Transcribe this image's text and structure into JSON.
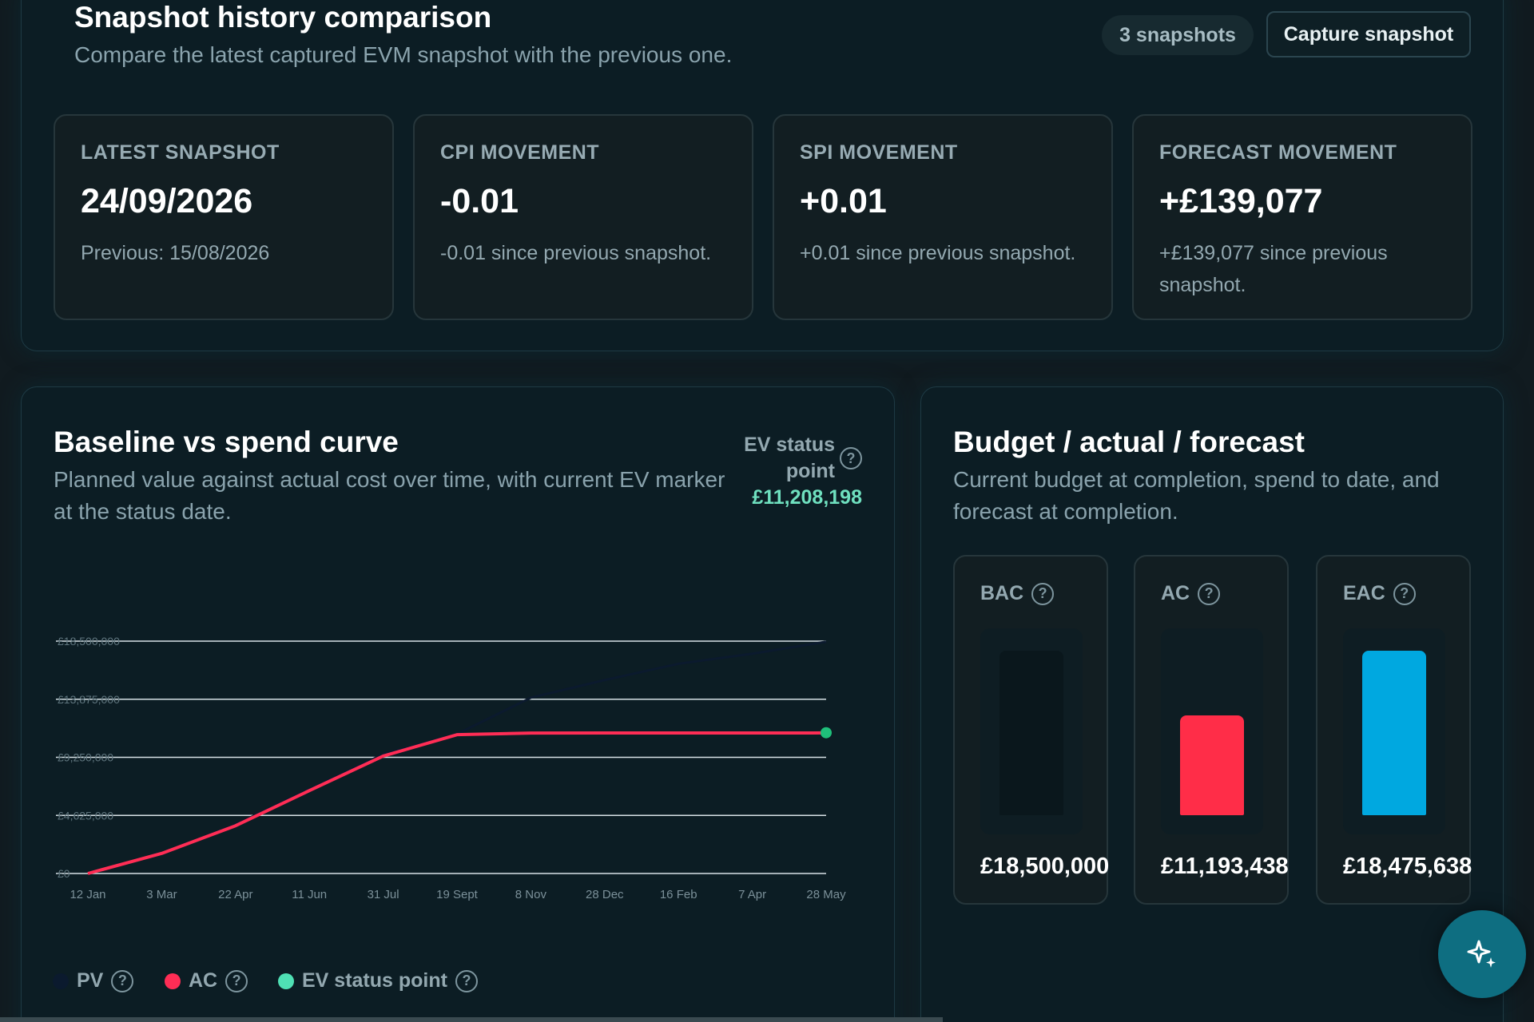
{
  "snapshot": {
    "title": "Snapshot history comparison",
    "subtitle": "Compare the latest captured EVM snapshot with the previous one.",
    "count_label": "3 snapshots",
    "capture_label": "Capture snapshot",
    "cards": [
      {
        "label": "LATEST SNAPSHOT",
        "value": "24/09/2026",
        "note": "Previous: 15/08/2026"
      },
      {
        "label": "CPI MOVEMENT",
        "value": "-0.01",
        "note": "-0.01 since previous snapshot."
      },
      {
        "label": "SPI MOVEMENT",
        "value": "+0.01",
        "note": "+0.01 since previous snapshot."
      },
      {
        "label": "FORECAST MOVEMENT",
        "value": "+£139,077",
        "note": "+£139,077 since previous snapshot."
      }
    ]
  },
  "curve": {
    "title": "Baseline vs spend curve",
    "subtitle": "Planned value against actual cost over time, with current EV marker at the status date.",
    "ev_label": "EV status point",
    "ev_value": "£11,208,198",
    "help": "?",
    "legend": [
      "PV",
      "AC",
      "EV status point"
    ]
  },
  "chart_data": {
    "type": "line",
    "x": [
      "12 Jan",
      "3 Mar",
      "22 Apr",
      "11 Jun",
      "31 Jul",
      "19 Sept",
      "8 Nov",
      "28 Dec",
      "16 Feb",
      "7 Apr",
      "28 May"
    ],
    "y_ticks": [
      "£0",
      "£4,625,000",
      "£9,250,000",
      "£13,875,000",
      "£18,500,000"
    ],
    "ylim": [
      0,
      18500000
    ],
    "series": [
      {
        "name": "PV",
        "color": "#0b1a2e",
        "values": [
          0,
          1600000,
          3900000,
          6700000,
          9500000,
          11100000,
          14000000,
          15400000,
          16700000,
          17500000,
          18450000
        ]
      },
      {
        "name": "AC",
        "color": "#ff2d55",
        "values": [
          0,
          1600000,
          3800000,
          6600000,
          9350000,
          11050000,
          11180000,
          11190000,
          11190000,
          11190000,
          11193438
        ]
      },
      {
        "name": "EV status point",
        "color": "#1fbf7a",
        "point": {
          "x": "28 May",
          "y": 11208198
        }
      }
    ]
  },
  "budget": {
    "title": "Budget / actual / forecast",
    "subtitle": "Current budget at completion, spend to date, and forecast at completion.",
    "bars": [
      {
        "label": "BAC",
        "value": "£18,500,000",
        "amount": 18500000,
        "color": "#0a171c"
      },
      {
        "label": "AC",
        "value": "£11,193,438",
        "amount": 11193438,
        "color": "#ff2d48"
      },
      {
        "label": "EAC",
        "value": "£18,475,638",
        "amount": 18475638,
        "color": "#00a8e0"
      }
    ]
  },
  "assistant": {
    "icon": "sparkle-icon"
  }
}
